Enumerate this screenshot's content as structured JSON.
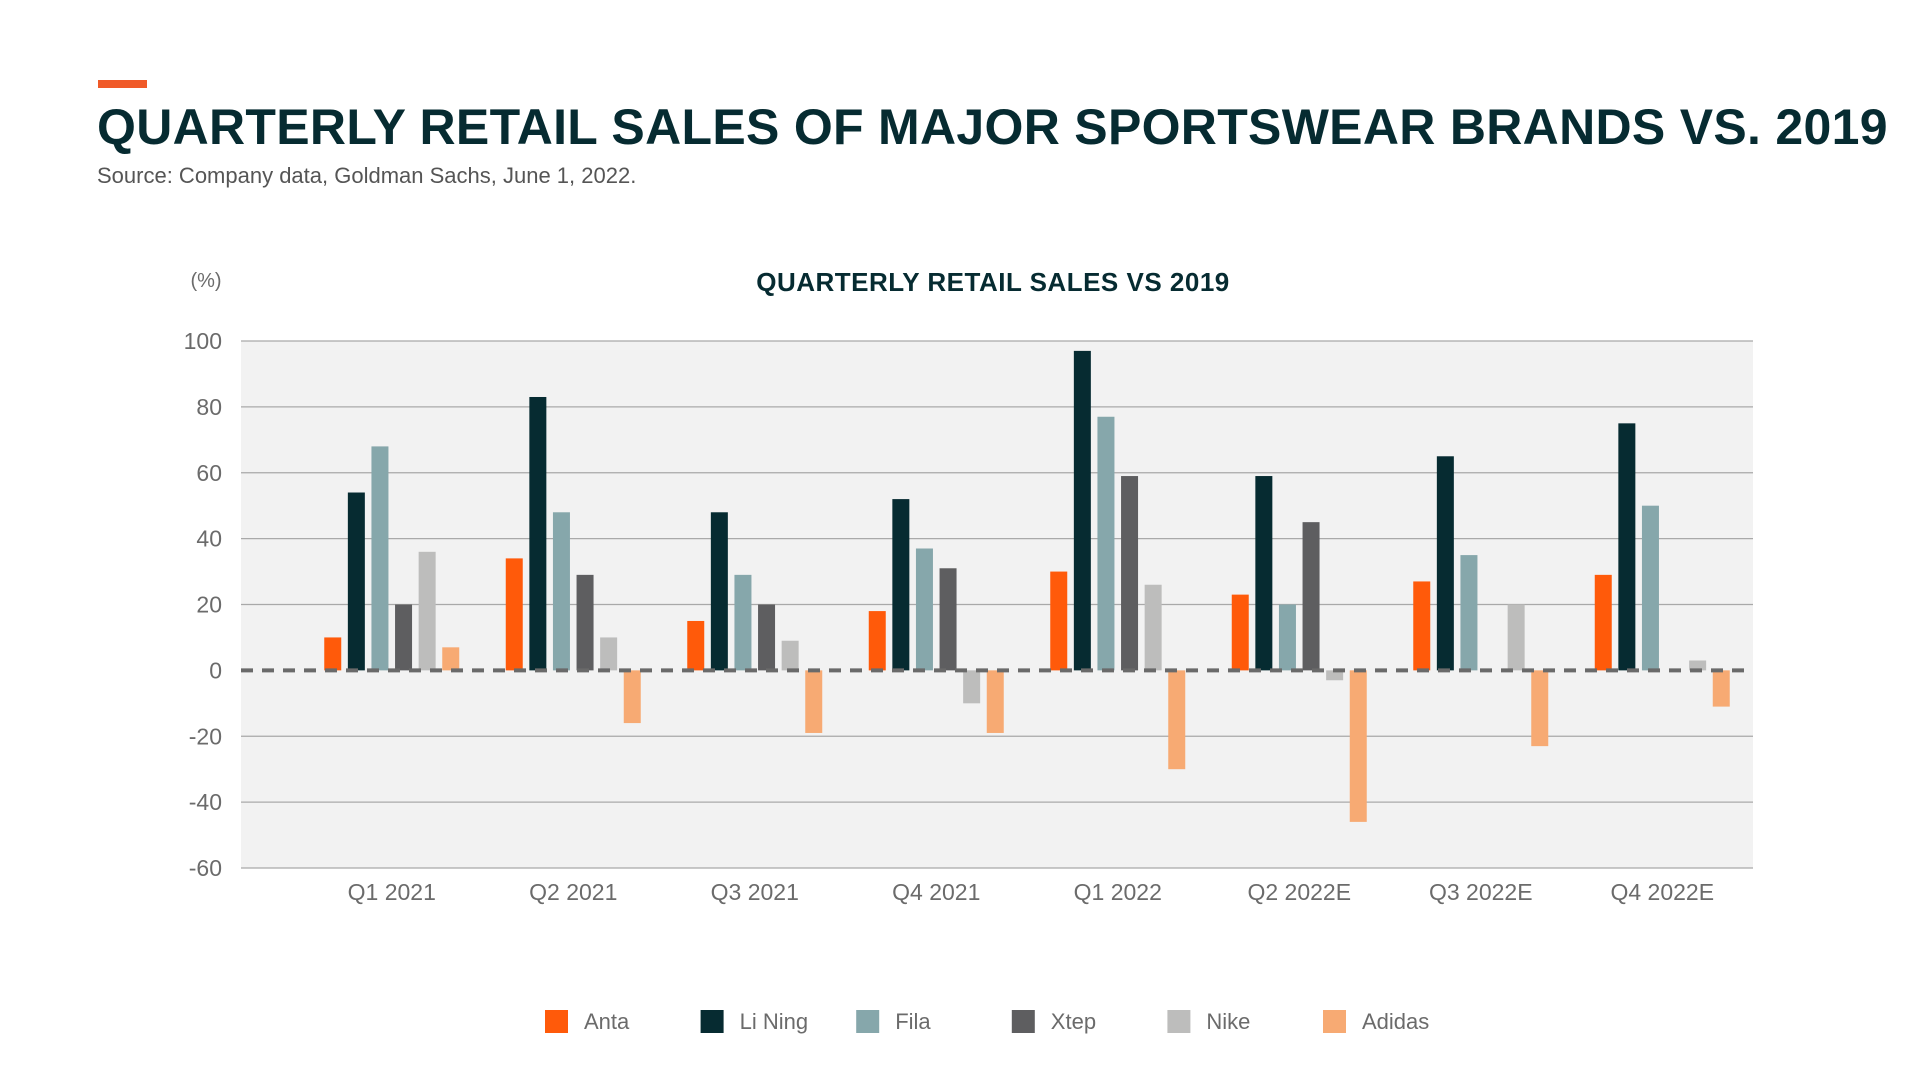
{
  "header": {
    "title": "QUARTERLY RETAIL SALES OF MAJOR SPORTSWEAR BRANDS VS. 2019",
    "source": "Source: Company data, Goldman Sachs, June 1, 2022.",
    "accent_color": "#f05a28"
  },
  "chart_data": {
    "type": "bar",
    "title": "QUARTERLY RETAIL SALES VS 2019",
    "ylabel": "(%)",
    "xlabel": "",
    "ylim": [
      -60,
      100
    ],
    "yticks": [
      100,
      80,
      60,
      40,
      20,
      0,
      -20,
      -40,
      -60
    ],
    "grid": true,
    "zero_line": "dashed",
    "legend_position": "bottom",
    "background_color": "#f2f2f2",
    "categories": [
      "Q1 2021",
      "Q2 2021",
      "Q3 2021",
      "Q4 2021",
      "Q1 2022",
      "Q2 2022E",
      "Q3 2022E",
      "Q4 2022E"
    ],
    "series": [
      {
        "name": "Anta",
        "color": "#ff5a0a",
        "values": [
          10,
          34,
          15,
          18,
          30,
          23,
          27,
          29
        ]
      },
      {
        "name": "Li Ning",
        "color": "#062b31",
        "values": [
          54,
          83,
          48,
          52,
          97,
          59,
          65,
          75
        ]
      },
      {
        "name": "Fila",
        "color": "#86a7ab",
        "values": [
          68,
          48,
          29,
          37,
          77,
          20,
          35,
          50
        ]
      },
      {
        "name": "Xtep",
        "color": "#5e5e60",
        "values": [
          20,
          29,
          20,
          31,
          59,
          45,
          0,
          0
        ]
      },
      {
        "name": "Nike",
        "color": "#bdbdbc",
        "values": [
          36,
          10,
          9,
          -10,
          26,
          -3,
          20,
          3
        ]
      },
      {
        "name": "Adidas",
        "color": "#f7aa73",
        "values": [
          7,
          -16,
          -19,
          -19,
          -30,
          -46,
          -23,
          -11
        ]
      }
    ]
  }
}
